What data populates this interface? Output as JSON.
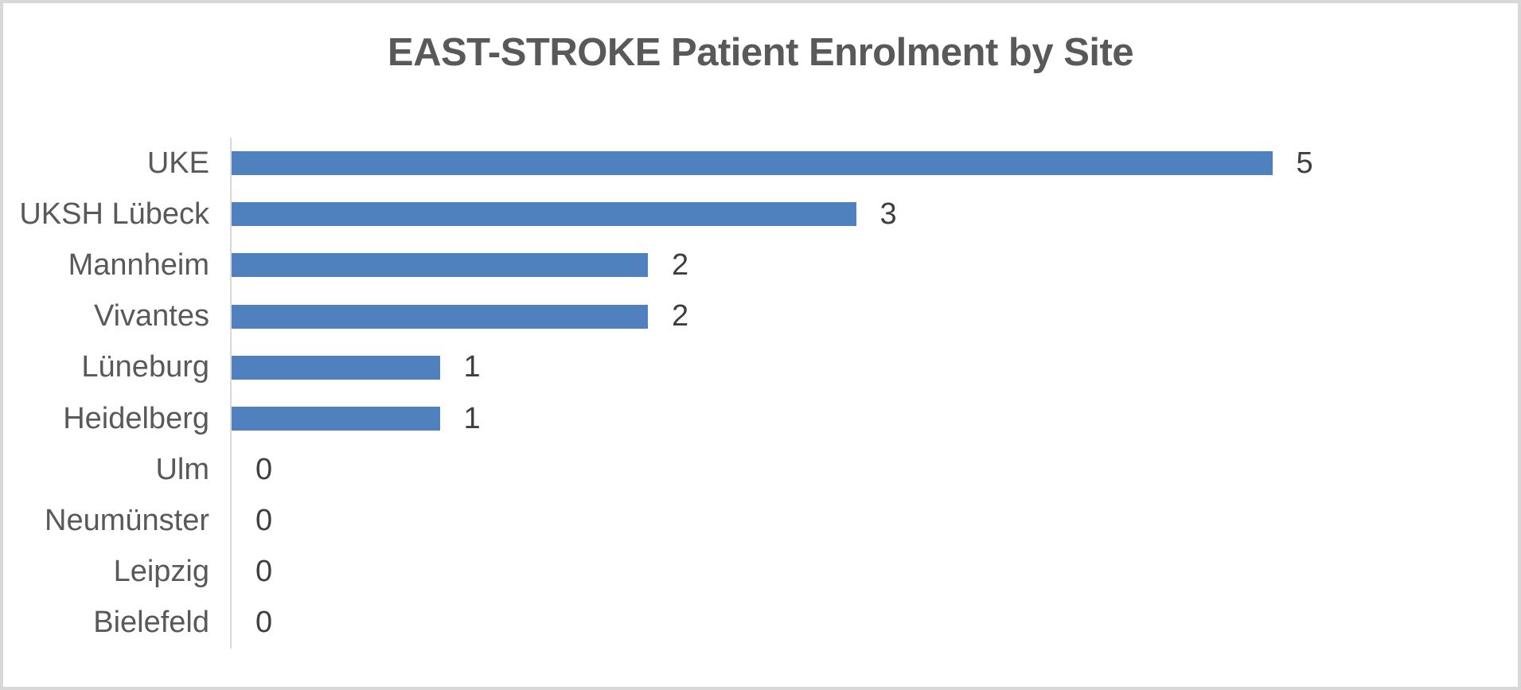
{
  "chart_data": {
    "type": "bar",
    "orientation": "horizontal",
    "title": "EAST-STROKE Patient Enrolment by Site",
    "categories": [
      "UKE",
      "UKSH Lübeck",
      "Mannheim",
      "Vivantes",
      "Lüneburg",
      "Heidelberg",
      "Ulm",
      "Neumünster",
      "Leipzig",
      "Bielefeld"
    ],
    "values": [
      5,
      3,
      2,
      2,
      1,
      1,
      0,
      0,
      0,
      0
    ],
    "data_labels": [
      "5",
      "3",
      "2",
      "2",
      "1",
      "1",
      "0",
      "0",
      "0",
      "0"
    ],
    "xlabel": "",
    "ylabel": "",
    "xlim": [
      0,
      5
    ],
    "grid": "off",
    "legend": "none",
    "colors": {
      "bar": "#4e81bd",
      "title": "#595959",
      "category_label": "#595959",
      "value_label": "#3f3f3f",
      "axis_line": "#d9d9d9",
      "page_border": "#d8d8d8",
      "background": "#ffffff"
    }
  }
}
